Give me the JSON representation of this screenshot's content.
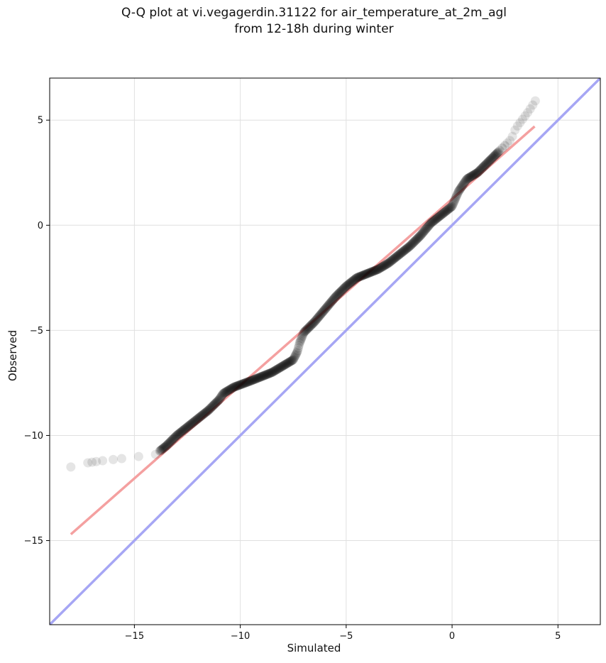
{
  "chart_data": {
    "type": "scatter",
    "title": "Q-Q plot at vi.vegagerdin.31122 for air_temperature_at_2m_agl",
    "subtitle": "from 12-18h during winter",
    "xlabel": "Simulated",
    "ylabel": "Observed",
    "xlim": [
      -19,
      7
    ],
    "ylim": [
      -19,
      7
    ],
    "xticks": [
      -15,
      -10,
      -5,
      0,
      5
    ],
    "yticks": [
      -15,
      -10,
      -5,
      0,
      5
    ],
    "xtick_labels": [
      "−15",
      "−10",
      "−5",
      "0",
      "5"
    ],
    "ytick_labels": [
      "−15",
      "−10",
      "−5",
      "0",
      "5"
    ],
    "grid": true,
    "colors": {
      "points": "#000000",
      "fit_line": "#f4a0a0",
      "identity_line": "#a6a6f4",
      "grid": "#e0e0e0"
    },
    "identity_line": {
      "x": [
        -19,
        7
      ],
      "y": [
        -19,
        7
      ]
    },
    "fit_line": {
      "x": [
        -18,
        3.9
      ],
      "y": [
        -14.7,
        4.7
      ]
    },
    "qq_curve_knots": [
      [
        -18,
        -11.5
      ],
      [
        -17.2,
        -11.3
      ],
      [
        -16.5,
        -11.2
      ],
      [
        -15.6,
        -11.1
      ],
      [
        -14.8,
        -11.0
      ],
      [
        -14.0,
        -10.9
      ],
      [
        -13.5,
        -10.5
      ],
      [
        -13.0,
        -10.0
      ],
      [
        -12.5,
        -9.6
      ],
      [
        -12.0,
        -9.2
      ],
      [
        -11.5,
        -8.8
      ],
      [
        -11.0,
        -8.3
      ],
      [
        -10.8,
        -8.0
      ],
      [
        -10.3,
        -7.7
      ],
      [
        -9.5,
        -7.4
      ],
      [
        -9.0,
        -7.2
      ],
      [
        -8.5,
        -7.0
      ],
      [
        -8.0,
        -6.7
      ],
      [
        -7.5,
        -6.4
      ],
      [
        -7.3,
        -6.0
      ],
      [
        -7.2,
        -5.6
      ],
      [
        -7.0,
        -5.1
      ],
      [
        -6.5,
        -4.6
      ],
      [
        -6.0,
        -4.0
      ],
      [
        -5.5,
        -3.4
      ],
      [
        -5.0,
        -2.9
      ],
      [
        -4.5,
        -2.5
      ],
      [
        -4.0,
        -2.3
      ],
      [
        -3.5,
        -2.1
      ],
      [
        -3.0,
        -1.8
      ],
      [
        -2.5,
        -1.4
      ],
      [
        -2.0,
        -1.0
      ],
      [
        -1.5,
        -0.5
      ],
      [
        -1.0,
        0.1
      ],
      [
        -0.5,
        0.5
      ],
      [
        0.0,
        0.9
      ],
      [
        0.3,
        1.6
      ],
      [
        0.7,
        2.2
      ],
      [
        1.2,
        2.5
      ],
      [
        1.7,
        3.0
      ],
      [
        2.2,
        3.5
      ],
      [
        2.8,
        4.1
      ],
      [
        3.0,
        4.6
      ],
      [
        3.3,
        5.0
      ],
      [
        3.6,
        5.4
      ],
      [
        3.8,
        5.7
      ],
      [
        3.95,
        5.95
      ]
    ]
  }
}
